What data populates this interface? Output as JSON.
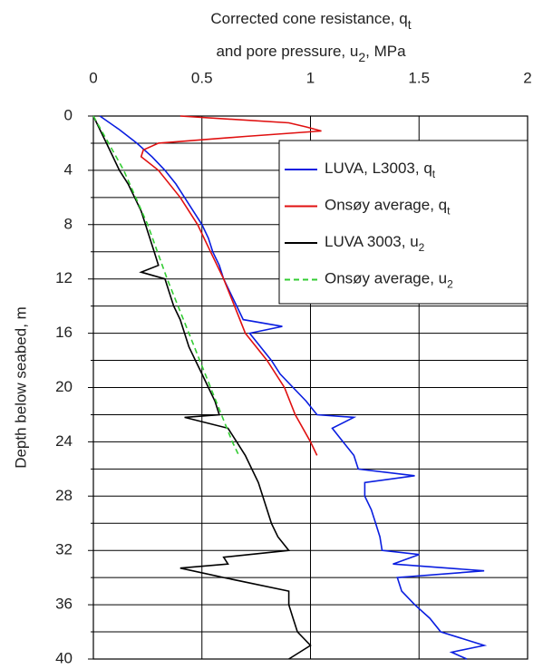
{
  "chart_data": {
    "type": "line",
    "title_lines": [
      {
        "text": "Corrected cone resistance, q",
        "sub": "t",
        "after": ""
      },
      {
        "text": "and pore pressure, u",
        "sub": "2",
        "after": ", MPa"
      }
    ],
    "ylabel": "Depth below seabed, m",
    "xlim": [
      0,
      2
    ],
    "xticks": [
      0,
      0.5,
      1,
      1.5,
      2
    ],
    "ylim": [
      0,
      40
    ],
    "yticks": [
      0,
      4,
      8,
      12,
      16,
      20,
      24,
      28,
      32,
      36,
      40
    ],
    "minor_yticks": [
      2,
      6,
      10,
      14,
      18,
      22,
      26,
      30,
      34,
      38
    ],
    "y_inverted": true,
    "x_axis_top": true,
    "grid": true,
    "legend": "upper right",
    "series": [
      {
        "name": "LUVA, L3003, q",
        "name_sub": "t",
        "color": "#0a1ee0",
        "dash": false,
        "y": [
          0,
          1,
          2,
          3,
          4,
          5,
          6,
          7,
          8,
          9,
          10,
          11,
          12,
          13,
          14,
          15,
          15.5,
          16,
          17,
          18,
          19,
          20,
          21,
          22,
          22.2,
          23,
          24,
          25,
          26,
          26.5,
          27,
          28,
          29,
          30,
          31,
          32,
          32.3,
          33,
          33.5,
          34,
          35,
          36,
          37,
          38,
          39,
          39.5,
          40
        ],
        "x": [
          0.03,
          0.12,
          0.2,
          0.27,
          0.33,
          0.38,
          0.42,
          0.46,
          0.5,
          0.53,
          0.55,
          0.58,
          0.6,
          0.63,
          0.66,
          0.69,
          0.87,
          0.72,
          0.77,
          0.82,
          0.86,
          0.92,
          0.98,
          1.03,
          1.2,
          1.1,
          1.15,
          1.2,
          1.22,
          1.48,
          1.25,
          1.25,
          1.28,
          1.3,
          1.32,
          1.33,
          1.5,
          1.38,
          1.8,
          1.4,
          1.42,
          1.48,
          1.55,
          1.6,
          1.8,
          1.65,
          1.72
        ]
      },
      {
        "name": "Onsøy average, q",
        "name_sub": "t",
        "color": "#e01010",
        "dash": false,
        "y": [
          0,
          0.5,
          0.8,
          1.1,
          1.5,
          2,
          2.5,
          3,
          4,
          6,
          8,
          10,
          12,
          14,
          16,
          18,
          20,
          22,
          24,
          25
        ],
        "x": [
          0.4,
          0.9,
          0.98,
          1.05,
          0.7,
          0.3,
          0.23,
          0.22,
          0.3,
          0.4,
          0.48,
          0.54,
          0.6,
          0.65,
          0.7,
          0.8,
          0.88,
          0.93,
          1.0,
          1.03
        ]
      },
      {
        "name": "LUVA 3003, u",
        "name_sub": "2",
        "color": "#000000",
        "dash": false,
        "y": [
          0,
          1,
          2,
          3,
          4,
          5,
          6,
          7,
          8,
          9,
          10,
          11,
          11.5,
          12,
          13,
          14,
          15,
          16,
          17,
          18,
          19,
          20,
          21,
          22,
          22.2,
          23,
          24,
          25,
          26,
          27,
          28,
          29,
          30,
          31,
          32,
          32.5,
          33,
          33.3,
          34,
          35,
          36,
          37,
          38,
          39,
          40
        ],
        "x": [
          0,
          0.03,
          0.06,
          0.09,
          0.12,
          0.16,
          0.19,
          0.22,
          0.24,
          0.26,
          0.28,
          0.3,
          0.22,
          0.33,
          0.35,
          0.37,
          0.4,
          0.42,
          0.44,
          0.47,
          0.5,
          0.53,
          0.56,
          0.58,
          0.42,
          0.62,
          0.66,
          0.7,
          0.73,
          0.76,
          0.78,
          0.8,
          0.82,
          0.85,
          0.9,
          0.6,
          0.62,
          0.4,
          0.6,
          0.9,
          0.9,
          0.92,
          0.94,
          1.0,
          0.9
        ]
      },
      {
        "name": "Onsøy average, u",
        "name_sub": "2",
        "color": "#33cc33",
        "dash": true,
        "y": [
          0,
          4,
          8,
          12,
          16,
          20,
          24,
          25
        ],
        "x": [
          0,
          0.14,
          0.25,
          0.34,
          0.44,
          0.54,
          0.64,
          0.67
        ]
      }
    ]
  }
}
